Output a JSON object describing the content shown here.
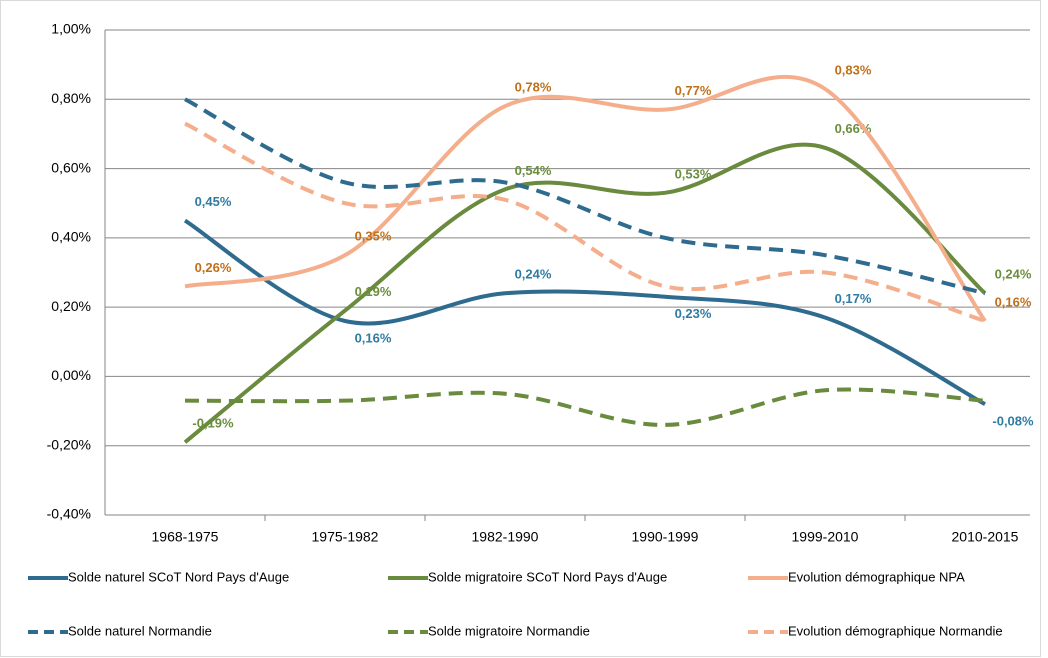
{
  "chart_data": {
    "type": "line",
    "categories": [
      "1968-1975",
      "1975-1982",
      "1982-1990",
      "1990-1999",
      "1999-2010",
      "2010-2015"
    ],
    "ylim": [
      -0.4,
      1.0
    ],
    "yticks": [
      {
        "value": -0.4,
        "label": "-0,40%"
      },
      {
        "value": -0.2,
        "label": "-0,20%"
      },
      {
        "value": 0,
        "label": "0,00%"
      },
      {
        "value": 0.2,
        "label": "0,20%"
      },
      {
        "value": 0.4,
        "label": "0,40%"
      },
      {
        "value": 0.6,
        "label": "0,60%"
      },
      {
        "value": 0.8,
        "label": "0,80%"
      },
      {
        "value": 1.0,
        "label": "1,00%"
      }
    ],
    "grid": true,
    "series": [
      {
        "name": "Solde naturel SCoT Nord Pays d'Auge",
        "color": "#2e6b8e",
        "label_color": "#2f7ca3",
        "dash": false,
        "values": [
          0.45,
          0.16,
          0.24,
          0.23,
          0.17,
          -0.08
        ],
        "value_labels": [
          "0,45%",
          "0,16%",
          "0,24%",
          "0,23%",
          "0,17%",
          "-0,08%"
        ]
      },
      {
        "name": "Solde migratoire SCoT Nord Pays d'Auge",
        "color": "#6a8a3e",
        "label_color": "#6b8e3e",
        "dash": false,
        "values": [
          -0.19,
          0.19,
          0.54,
          0.53,
          0.66,
          0.24
        ],
        "value_labels": [
          "-0,19%",
          "0,19%",
          "0,54%",
          "0,53%",
          "0,66%",
          "0,24%"
        ]
      },
      {
        "name": "Evolution démographique NPA",
        "color": "#f4ae8c",
        "label_color": "#c0701a",
        "dash": false,
        "values": [
          0.26,
          0.35,
          0.78,
          0.77,
          0.83,
          0.16
        ],
        "value_labels": [
          "0,26%",
          "0,35%",
          "0,78%",
          "0,77%",
          "0,83%",
          "0,16%"
        ]
      },
      {
        "name": "Solde naturel Normandie",
        "color": "#2e6b8e",
        "dash": true,
        "values": [
          0.8,
          0.56,
          0.56,
          0.4,
          0.35,
          0.24
        ]
      },
      {
        "name": "Solde migratoire Normandie",
        "color": "#6a8a3e",
        "dash": true,
        "values": [
          -0.07,
          -0.07,
          -0.05,
          -0.14,
          -0.04,
          -0.07
        ]
      },
      {
        "name": "Evolution démographique Normandie",
        "color": "#f4ae8c",
        "dash": true,
        "values": [
          0.73,
          0.5,
          0.51,
          0.26,
          0.3,
          0.16
        ]
      }
    ]
  }
}
